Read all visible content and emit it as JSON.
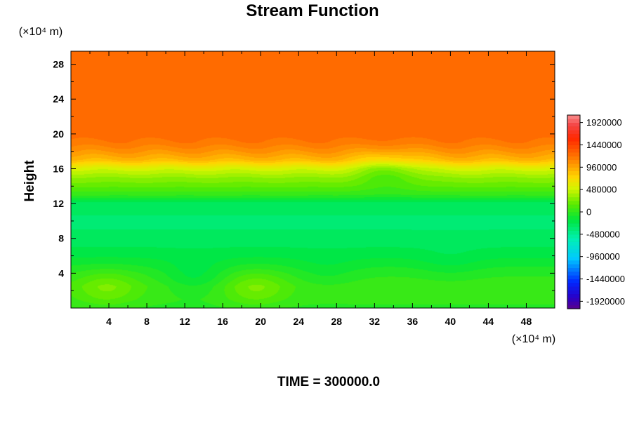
{
  "chart_data": {
    "type": "heatmap",
    "title": "Stream Function",
    "ylabel": "Height",
    "y_unit": "(×10⁴ m)",
    "x_unit": "(×10⁴ m)",
    "time_label": "TIME = 300000.0",
    "xlim": [
      0,
      51
    ],
    "ylim": [
      0,
      29.5
    ],
    "x_ticks": [
      "4",
      "8",
      "12",
      "16",
      "20",
      "24",
      "28",
      "32",
      "36",
      "40",
      "44",
      "48"
    ],
    "x_tick_values": [
      4,
      8,
      12,
      16,
      20,
      24,
      28,
      32,
      36,
      40,
      44,
      48
    ],
    "y_ticks": [
      "4",
      "8",
      "12",
      "16",
      "20",
      "24",
      "28"
    ],
    "y_tick_values": [
      4,
      8,
      12,
      16,
      20,
      24,
      28
    ],
    "colorbar": {
      "min": -2080000,
      "max": 2080000,
      "labels": [
        "1920000",
        "1440000",
        "960000",
        "480000",
        "0",
        "-480000",
        "-960000",
        "-1440000",
        "-1920000"
      ],
      "label_values": [
        1920000,
        1440000,
        960000,
        480000,
        0,
        -480000,
        -960000,
        -1440000,
        -1920000
      ]
    },
    "field_profile": {
      "heights": [
        0,
        1,
        2.5,
        4,
        6,
        8,
        10,
        12,
        13,
        14,
        15,
        16,
        17,
        18,
        19,
        20,
        29.5
      ],
      "values": [
        -20000,
        30000,
        60000,
        -20000,
        -180000,
        -300000,
        -340000,
        -280000,
        20000,
        180000,
        320000,
        520000,
        880000,
        1050000,
        1180000,
        1250000,
        1260000
      ]
    },
    "field_features": [
      {
        "x": 3.8,
        "y": 2.3,
        "delta": 200000
      },
      {
        "x": 19.5,
        "y": 2.3,
        "delta": 200000
      },
      {
        "x": 13,
        "y": 3.5,
        "delta": -170000
      },
      {
        "x": 27,
        "y": 4,
        "delta": -80000
      },
      {
        "x": 40,
        "y": 5,
        "delta": -70000
      },
      {
        "x": 33.5,
        "y": 16,
        "delta": -250000
      }
    ],
    "grid": false
  }
}
